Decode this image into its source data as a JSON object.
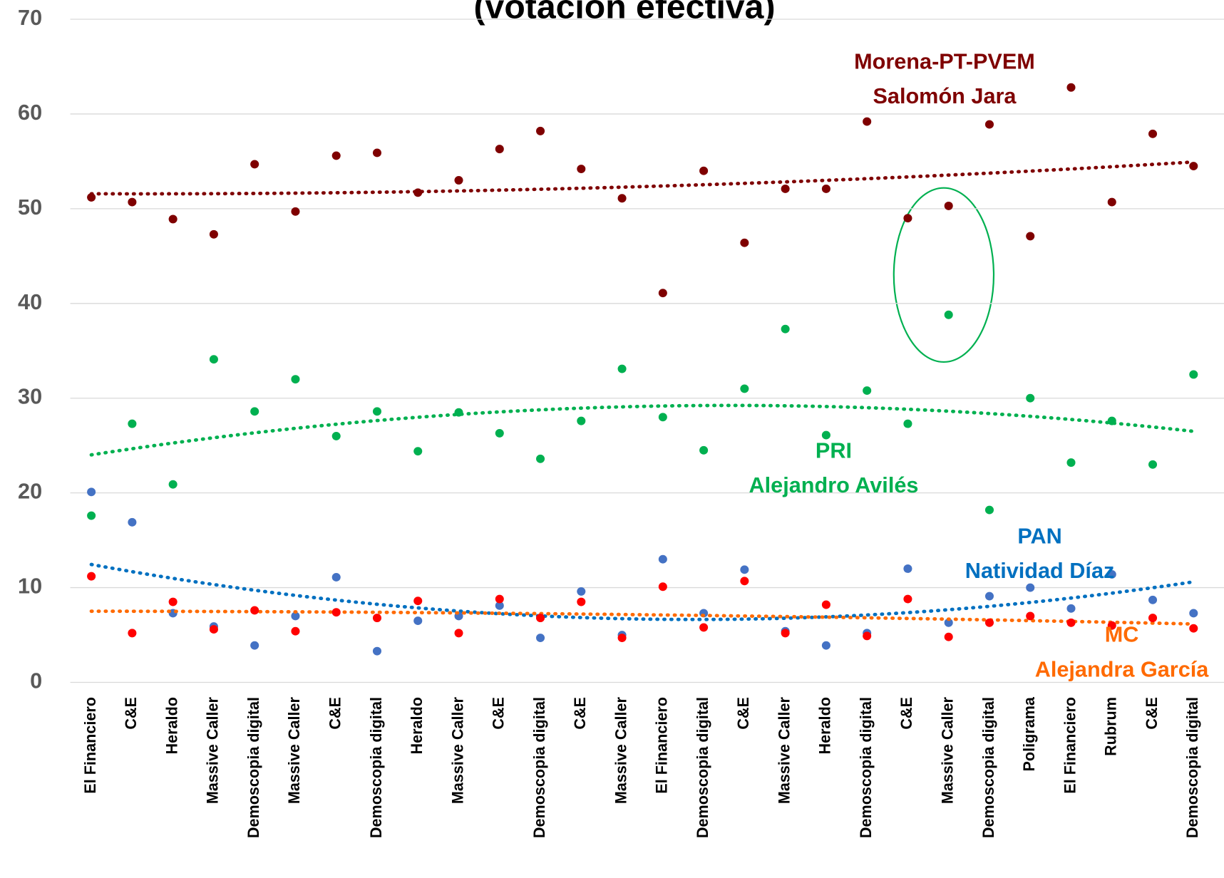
{
  "chart_data": {
    "type": "scatter",
    "title": "(votación efectiva)",
    "categories": [
      "El Financiero",
      "C&E",
      "Heraldo",
      "Massive Caller",
      "Demoscopia digital",
      "Massive Caller",
      "C&E",
      "Demoscopia digital",
      "Heraldo",
      "Massive Caller",
      "C&E",
      "Demoscopia digital",
      "C&E",
      "Massive Caller",
      "El Financiero",
      "Demoscopia digital",
      "C&E",
      "Massive Caller",
      "Heraldo",
      "Demoscopia digital",
      "C&E",
      "Massive Caller",
      "Demoscopia digital",
      "Poligrama",
      "El Financiero",
      "Rubrum",
      "C&E",
      "Demoscopia digital"
    ],
    "ylim": [
      0,
      70
    ],
    "yticks": [
      0,
      10,
      20,
      30,
      40,
      50,
      60,
      70
    ],
    "grid": true,
    "trendline": "polynomial",
    "series": [
      {
        "name": "Morena-PT-PVEM",
        "candidate": "Salomón Jara",
        "color": "#7f0000",
        "trend_color": "#7f0000",
        "values": [
          51.2,
          50.7,
          48.9,
          47.3,
          54.7,
          49.7,
          55.6,
          55.9,
          51.7,
          53.0,
          56.3,
          58.2,
          54.2,
          51.1,
          41.1,
          54.0,
          46.4,
          52.1,
          52.1,
          59.2,
          49.0,
          50.3,
          58.9,
          47.1,
          62.8,
          50.7,
          57.9,
          54.5
        ]
      },
      {
        "name": "PRI",
        "candidate": "Alejandro Avilés",
        "color": "#00b050",
        "trend_color": "#00b050",
        "values": [
          17.6,
          27.3,
          20.9,
          34.1,
          28.6,
          32.0,
          26.0,
          28.6,
          24.4,
          28.5,
          26.3,
          23.6,
          27.6,
          33.1,
          28.0,
          24.5,
          31.0,
          37.3,
          26.1,
          30.8,
          27.3,
          38.8,
          18.2,
          30.0,
          23.2,
          27.6,
          23.0,
          32.5
        ]
      },
      {
        "name": "PAN",
        "candidate": "Natividad Díaz",
        "color": "#4472c4",
        "trend_color": "#0070c0",
        "values": [
          20.1,
          16.9,
          7.3,
          5.9,
          3.9,
          7.0,
          11.1,
          3.3,
          6.5,
          7.0,
          8.1,
          4.7,
          9.6,
          5.0,
          13.0,
          7.3,
          11.9,
          5.4,
          3.9,
          5.2,
          12.0,
          6.3,
          9.1,
          10.0,
          7.8,
          11.4,
          8.7,
          7.3
        ]
      },
      {
        "name": "MC",
        "candidate": "Alejandra García",
        "color": "#ff0000",
        "trend_color": "#ff6a00",
        "values": [
          11.2,
          5.2,
          8.5,
          5.6,
          7.6,
          5.4,
          7.4,
          6.8,
          8.6,
          5.2,
          8.8,
          6.8,
          8.5,
          4.7,
          10.1,
          5.8,
          10.7,
          5.2,
          8.2,
          4.9,
          8.8,
          4.8,
          6.3,
          7.0,
          6.3,
          6.0,
          6.8,
          5.7
        ]
      }
    ]
  }
}
